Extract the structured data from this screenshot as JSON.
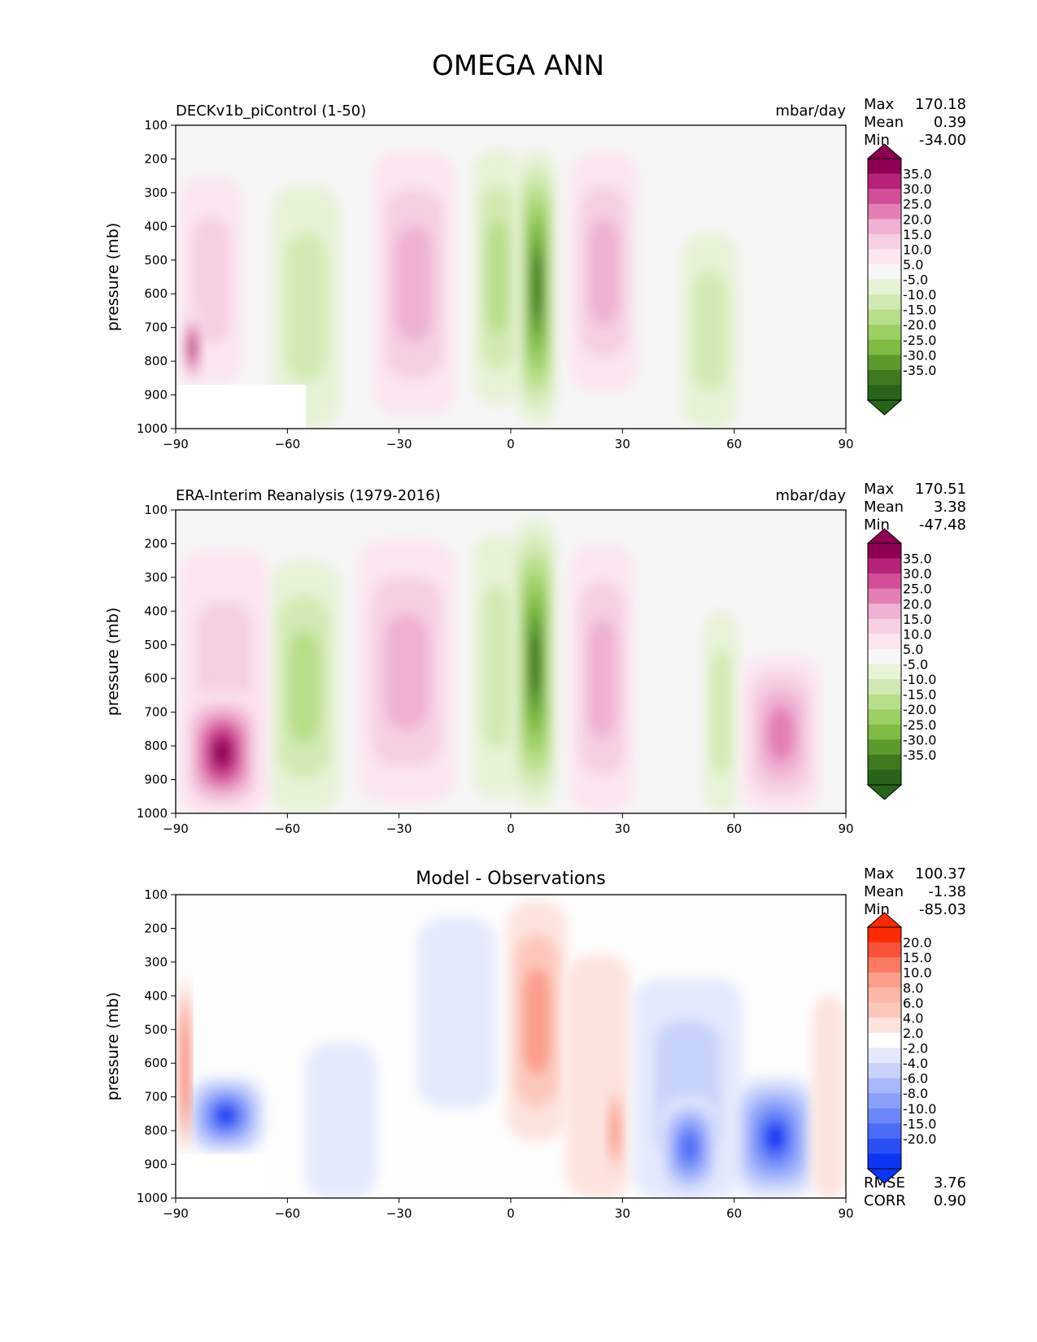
{
  "figure": {
    "title": "OMEGA ANN"
  },
  "colors": {
    "field_background": "#f5f5f5",
    "diff_background": "#fdfdfd",
    "ramp_pink": [
      "#fce6f0",
      "#f6cfe3",
      "#efb1d1",
      "#e37fb3",
      "#d24e98",
      "#b6217a",
      "#8e0152"
    ],
    "ramp_green": [
      "#e7f3d6",
      "#d1eab3",
      "#b7de89",
      "#9ccf64",
      "#7fba42",
      "#5b9a2d",
      "#276419"
    ],
    "ramp_red": [
      "#fde3dd",
      "#fcc7bb",
      "#fb9e8a",
      "#fa7a62",
      "#f8523a",
      "#f52d1a",
      "#ff2a00"
    ],
    "ramp_blue": [
      "#e4e9fd",
      "#c8d3fc",
      "#a8b8fb",
      "#8aa0fa",
      "#6b86f8",
      "#4b6cf7",
      "#0a35f4"
    ]
  },
  "panels": [
    {
      "left_title": "DECKv1b_piControl (1-50)",
      "center_title": "",
      "units": "mbar/day",
      "ylabel": "pressure (mb)",
      "stats": [
        {
          "name": "Max",
          "value": "170.18"
        },
        {
          "name": "Mean",
          "value": "0.39"
        },
        {
          "name": "Min",
          "value": "-34.00"
        }
      ]
    },
    {
      "left_title": "ERA-Interim Reanalysis (1979-2016)",
      "center_title": "",
      "units": "mbar/day",
      "ylabel": "pressure (mb)",
      "stats": [
        {
          "name": "Max",
          "value": "170.51"
        },
        {
          "name": "Mean",
          "value": "3.38"
        },
        {
          "name": "Min",
          "value": "-47.48"
        }
      ]
    },
    {
      "left_title": "",
      "center_title": "Model - Observations",
      "units": "",
      "ylabel": "pressure (mb)",
      "stats": [
        {
          "name": "Max",
          "value": "100.37"
        },
        {
          "name": "Mean",
          "value": "-1.38"
        },
        {
          "name": "Min",
          "value": "-85.03"
        }
      ],
      "metrics": [
        {
          "name": "RMSE",
          "value": "3.76"
        },
        {
          "name": "CORR",
          "value": "0.90"
        }
      ]
    }
  ],
  "colorbars": [
    {
      "labels": [
        "35.0",
        "30.0",
        "25.0",
        "20.0",
        "15.0",
        "10.0",
        "5.0",
        "-5.0",
        "-10.0",
        "-15.0",
        "-20.0",
        "-25.0",
        "-30.0",
        "-35.0"
      ],
      "colors": [
        "#8e0152",
        "#b6217a",
        "#d24e98",
        "#e37fb3",
        "#efb1d1",
        "#f6cfe3",
        "#fce6f0",
        "#f7f7f7",
        "#e7f3d6",
        "#d1eab3",
        "#b7de89",
        "#9ccf64",
        "#7fba42",
        "#5b9a2d",
        "#3d7a1f",
        "#276419"
      ]
    },
    {
      "labels": [
        "20.0",
        "15.0",
        "10.0",
        "8.0",
        "6.0",
        "4.0",
        "2.0",
        "-2.0",
        "-4.0",
        "-6.0",
        "-8.0",
        "-10.0",
        "-15.0",
        "-20.0"
      ],
      "colors": [
        "#ff2a00",
        "#f8523a",
        "#fa7a62",
        "#fb9e8a",
        "#fcb7a6",
        "#fcc7bb",
        "#fde3dd",
        "#ffffff",
        "#e4e9fd",
        "#c8d3fc",
        "#a8b8fb",
        "#8aa0fa",
        "#6b86f8",
        "#4b6cf7",
        "#2a50f5",
        "#0a35f4"
      ]
    }
  ],
  "chart_data": [
    {
      "type": "heatmap",
      "title": "DECKv1b_piControl (1-50)",
      "units": "mbar/day",
      "xlabel": "",
      "ylabel": "pressure (mb)",
      "xlim": [
        -90,
        90
      ],
      "ylim": [
        1000,
        100
      ],
      "x_ticks": [
        -90,
        -60,
        -30,
        0,
        30,
        60,
        90
      ],
      "y_ticks": [
        100,
        200,
        300,
        400,
        500,
        600,
        700,
        800,
        900,
        1000
      ],
      "max": 170.18,
      "mean": 0.39,
      "min": -34.0,
      "features": [
        {
          "lat": [
            -64,
            -46
          ],
          "p": [
            280,
            1000
          ],
          "peak": -12
        },
        {
          "lat": [
            -37,
            -15
          ],
          "p": [
            180,
            960
          ],
          "peak": 16
        },
        {
          "lat": [
            -10,
            3
          ],
          "p": [
            170,
            930
          ],
          "peak": -14
        },
        {
          "lat": [
            2,
            12
          ],
          "p": [
            170,
            990
          ],
          "peak": -35
        },
        {
          "lat": [
            16,
            34
          ],
          "p": [
            180,
            890
          ],
          "peak": 15
        },
        {
          "lat": [
            46,
            61
          ],
          "p": [
            420,
            1000
          ],
          "peak": -8
        },
        {
          "lat": [
            -89,
            -72
          ],
          "p": [
            250,
            870
          ],
          "peak": 10
        },
        {
          "lat": [
            -88,
            -83
          ],
          "p": [
            650,
            870
          ],
          "peak": 100
        }
      ],
      "masked": [
        {
          "lat": [
            -90,
            -55
          ],
          "p": [
            870,
            1000
          ]
        }
      ]
    },
    {
      "type": "heatmap",
      "title": "ERA-Interim Reanalysis (1979-2016)",
      "units": "mbar/day",
      "xlabel": "",
      "ylabel": "pressure (mb)",
      "xlim": [
        -90,
        90
      ],
      "ylim": [
        1000,
        100
      ],
      "x_ticks": [
        -90,
        -60,
        -30,
        0,
        30,
        60,
        90
      ],
      "y_ticks": [
        100,
        200,
        300,
        400,
        500,
        600,
        700,
        800,
        900,
        1000
      ],
      "max": 170.51,
      "mean": 3.38,
      "min": -47.48,
      "features": [
        {
          "lat": [
            -65,
            -46
          ],
          "p": [
            250,
            1000
          ],
          "peak": -16
        },
        {
          "lat": [
            -41,
            -15
          ],
          "p": [
            190,
            970
          ],
          "peak": 16
        },
        {
          "lat": [
            -10,
            3
          ],
          "p": [
            170,
            960
          ],
          "peak": -12
        },
        {
          "lat": [
            1,
            12
          ],
          "p": [
            120,
            990
          ],
          "peak": -40
        },
        {
          "lat": [
            16,
            33
          ],
          "p": [
            200,
            1000
          ],
          "peak": 14
        },
        {
          "lat": [
            52,
            61
          ],
          "p": [
            400,
            1000
          ],
          "peak": -10
        },
        {
          "lat": [
            -89,
            -65
          ],
          "p": [
            220,
            1000
          ],
          "peak": 12
        },
        {
          "lat": [
            -88,
            -67
          ],
          "p": [
            640,
            1000
          ],
          "peak": 140
        },
        {
          "lat": [
            62,
            83
          ],
          "p": [
            530,
            1000
          ],
          "peak": 18
        }
      ],
      "masked": []
    },
    {
      "type": "heatmap",
      "title": "Model - Observations",
      "units": "",
      "xlabel": "",
      "ylabel": "pressure (mb)",
      "xlim": [
        -90,
        90
      ],
      "ylim": [
        1000,
        100
      ],
      "x_ticks": [
        -90,
        -60,
        -30,
        0,
        30,
        60,
        90
      ],
      "y_ticks": [
        100,
        200,
        300,
        400,
        500,
        600,
        700,
        800,
        900,
        1000
      ],
      "max": 100.37,
      "mean": -1.38,
      "min": -85.03,
      "rmse": 3.76,
      "corr": 0.9,
      "features": [
        {
          "lat": [
            -87,
            -66
          ],
          "p": [
            640,
            870
          ],
          "peak": -40
        },
        {
          "lat": [
            -89,
            -86
          ],
          "p": [
            350,
            870
          ],
          "peak": 25
        },
        {
          "lat": [
            -55,
            -36
          ],
          "p": [
            540,
            1000
          ],
          "peak": -4
        },
        {
          "lat": [
            -25,
            -4
          ],
          "p": [
            170,
            730
          ],
          "peak": -3
        },
        {
          "lat": [
            -1,
            15
          ],
          "p": [
            120,
            830
          ],
          "peak": 8
        },
        {
          "lat": [
            15,
            32
          ],
          "p": [
            280,
            1000
          ],
          "peak": 3
        },
        {
          "lat": [
            26,
            30
          ],
          "p": [
            650,
            950
          ],
          "peak": 10
        },
        {
          "lat": [
            33,
            62
          ],
          "p": [
            350,
            1000
          ],
          "peak": -6
        },
        {
          "lat": [
            40,
            56
          ],
          "p": [
            700,
            1000
          ],
          "peak": -18
        },
        {
          "lat": [
            60,
            82
          ],
          "p": [
            640,
            1000
          ],
          "peak": -30
        },
        {
          "lat": [
            81,
            90
          ],
          "p": [
            400,
            1000
          ],
          "peak": 3
        }
      ],
      "masked": [
        {
          "lat": [
            -90,
            -66
          ],
          "p": [
            870,
            1000
          ]
        }
      ]
    }
  ]
}
